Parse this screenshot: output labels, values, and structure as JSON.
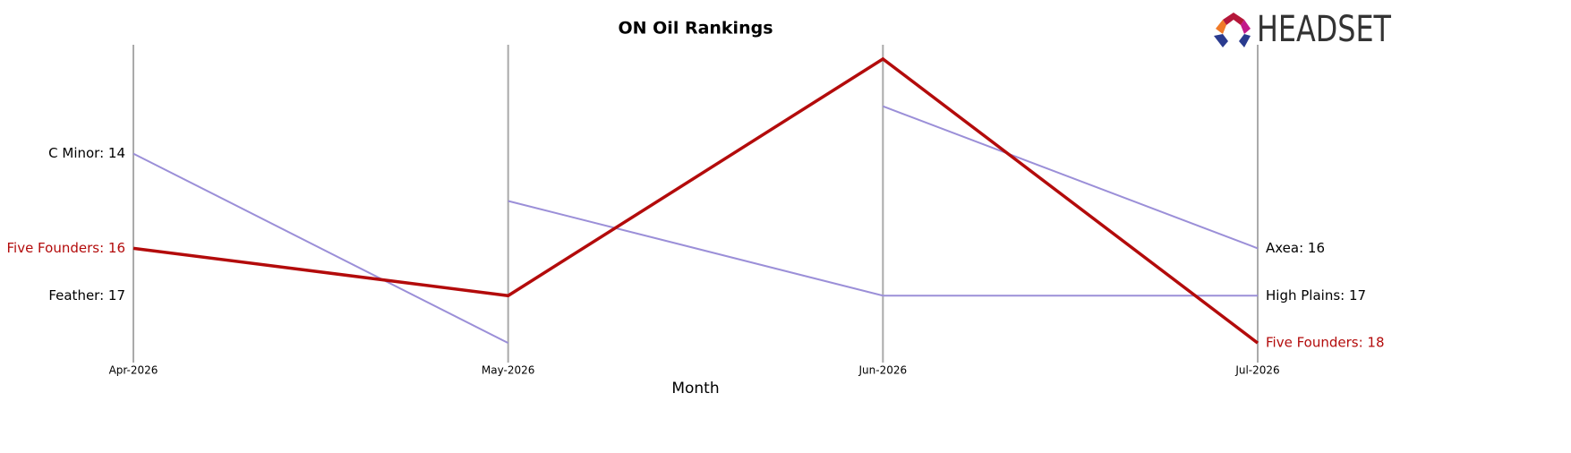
{
  "logo": "HEADSET",
  "chart_data": {
    "type": "bump",
    "title": "ON Oil Rankings",
    "x_label": "Month",
    "categories": [
      "Apr-2026",
      "May-2026",
      "Jun-2026",
      "Jul-2026"
    ],
    "ylim": [
      18.3,
      11.7
    ],
    "series": [
      {
        "name": "C Minor",
        "color": "#9b8fd8",
        "values": [
          14,
          18,
          null,
          null
        ],
        "value_labels": [
          "C Minor: 14",
          null,
          null,
          null
        ]
      },
      {
        "name": "Feather",
        "color": "#9b8fd8",
        "values": [
          17,
          null,
          null,
          null
        ],
        "value_labels": [
          "Feather: 17",
          null,
          null,
          null
        ]
      },
      {
        "name": "High Plains",
        "color": "#9b8fd8",
        "values": [
          null,
          15,
          17,
          17
        ],
        "value_labels": [
          null,
          null,
          null,
          "High Plains: 17"
        ]
      },
      {
        "name": "Axea",
        "color": "#9b8fd8",
        "values": [
          null,
          null,
          13,
          16
        ],
        "value_labels": [
          null,
          null,
          null,
          "Axea: 16"
        ]
      },
      {
        "name": "Five Founders",
        "color": "#b30b0b",
        "highlight": true,
        "values": [
          16,
          17,
          12,
          18
        ],
        "value_labels": [
          "Five Founders: 16",
          null,
          null,
          "Five Founders: 18"
        ]
      }
    ]
  }
}
